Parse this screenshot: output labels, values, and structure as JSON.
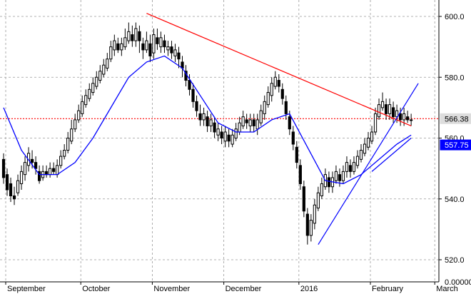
{
  "chart_data": {
    "type": "candlestick",
    "title": "",
    "x_labels": [
      "September",
      "October",
      "November",
      "December",
      "2016",
      "February",
      "March"
    ],
    "x_label_index": [
      1,
      22,
      42,
      62,
      83,
      103,
      121
    ],
    "y_ticks": [
      "600.0",
      "580.0",
      "560.0",
      "540.0",
      "520.0"
    ],
    "y_tick_values": [
      600,
      580,
      560,
      540,
      520
    ],
    "ylim": [
      515,
      604
    ],
    "bottom_right_value": "0.00000",
    "grid": "vertical dashed at month starts, horizontal dashed at y ticks",
    "candles": [
      [
        553,
        547,
        555,
        545
      ],
      [
        548,
        543,
        550,
        541
      ],
      [
        545,
        541,
        547,
        539
      ],
      [
        541,
        540,
        544,
        538
      ],
      [
        542,
        546,
        548,
        541
      ],
      [
        545,
        549,
        551,
        543
      ],
      [
        548,
        552,
        554,
        546
      ],
      [
        551,
        555,
        557,
        549
      ],
      [
        553,
        552,
        556,
        550
      ],
      [
        552,
        550,
        554,
        548
      ],
      [
        549,
        546,
        551,
        545
      ],
      [
        547,
        549,
        551,
        546
      ],
      [
        549,
        548,
        551,
        547
      ],
      [
        548,
        550,
        552,
        547
      ],
      [
        550,
        549,
        552,
        548
      ],
      [
        548,
        551,
        553,
        547
      ],
      [
        551,
        554,
        556,
        550
      ],
      [
        554,
        556,
        558,
        553
      ],
      [
        556,
        560,
        562,
        555
      ],
      [
        559,
        563,
        566,
        558
      ],
      [
        563,
        566,
        568,
        562
      ],
      [
        566,
        569,
        571,
        565
      ],
      [
        568,
        572,
        574,
        567
      ],
      [
        571,
        574,
        576,
        570
      ],
      [
        573,
        576,
        578,
        572
      ],
      [
        575,
        578,
        580,
        574
      ],
      [
        577,
        580,
        582,
        576
      ],
      [
        579,
        582,
        584,
        578
      ],
      [
        581,
        584,
        586,
        580
      ],
      [
        583,
        586,
        588,
        582
      ],
      [
        586,
        590,
        592,
        585
      ],
      [
        589,
        592,
        594,
        587
      ],
      [
        591,
        589,
        593,
        588
      ],
      [
        589,
        591,
        593,
        587
      ],
      [
        590,
        593,
        596,
        589
      ],
      [
        592,
        595,
        598,
        591
      ],
      [
        594,
        592,
        597,
        590
      ],
      [
        592,
        596,
        598,
        590
      ],
      [
        595,
        592,
        597,
        588
      ],
      [
        591,
        589,
        593,
        586
      ],
      [
        589,
        592,
        595,
        588
      ],
      [
        591,
        587,
        594,
        585
      ],
      [
        588,
        594,
        596,
        586
      ],
      [
        593,
        591,
        596,
        589
      ],
      [
        590,
        593,
        595,
        588
      ],
      [
        592,
        590,
        594,
        588
      ],
      [
        589,
        590,
        592,
        587
      ],
      [
        590,
        588,
        592,
        586
      ],
      [
        587,
        589,
        591,
        585
      ],
      [
        588,
        586,
        590,
        583
      ],
      [
        585,
        583,
        587,
        580
      ],
      [
        582,
        579,
        584,
        577
      ],
      [
        579,
        576,
        581,
        574
      ],
      [
        576,
        572,
        578,
        570
      ],
      [
        572,
        569,
        574,
        567
      ],
      [
        568,
        566,
        571,
        564
      ],
      [
        566,
        568,
        570,
        564
      ],
      [
        567,
        564,
        569,
        562
      ],
      [
        564,
        566,
        568,
        562
      ],
      [
        565,
        562,
        567,
        560
      ],
      [
        561,
        563,
        565,
        559
      ],
      [
        562,
        560,
        564,
        558
      ],
      [
        559,
        562,
        564,
        557
      ],
      [
        561,
        559,
        563,
        557
      ],
      [
        558,
        561,
        563,
        557
      ],
      [
        560,
        563,
        565,
        559
      ],
      [
        562,
        565,
        567,
        561
      ],
      [
        564,
        567,
        569,
        563
      ],
      [
        566,
        565,
        568,
        563
      ],
      [
        564,
        566,
        568,
        562
      ],
      [
        566,
        564,
        568,
        562
      ],
      [
        563,
        566,
        568,
        561
      ],
      [
        565,
        569,
        571,
        564
      ],
      [
        568,
        572,
        574,
        566
      ],
      [
        571,
        575,
        577,
        570
      ],
      [
        574,
        578,
        580,
        572
      ],
      [
        577,
        580,
        582,
        576
      ],
      [
        579,
        577,
        581,
        575
      ],
      [
        576,
        573,
        578,
        571
      ],
      [
        572,
        568,
        574,
        566
      ],
      [
        567,
        563,
        569,
        561
      ],
      [
        562,
        558,
        564,
        556
      ],
      [
        557,
        552,
        559,
        550
      ],
      [
        551,
        545,
        553,
        543
      ],
      [
        544,
        536,
        546,
        534
      ],
      [
        535,
        528,
        537,
        525
      ],
      [
        528,
        533,
        535,
        526
      ],
      [
        532,
        538,
        540,
        530
      ],
      [
        537,
        542,
        544,
        536
      ],
      [
        541,
        545,
        547,
        540
      ],
      [
        544,
        548,
        550,
        543
      ],
      [
        547,
        544,
        549,
        542
      ],
      [
        544,
        547,
        549,
        542
      ],
      [
        546,
        549,
        551,
        545
      ],
      [
        548,
        546,
        550,
        544
      ],
      [
        546,
        549,
        551,
        545
      ],
      [
        549,
        552,
        554,
        547
      ],
      [
        551,
        549,
        553,
        547
      ],
      [
        549,
        552,
        554,
        548
      ],
      [
        551,
        554,
        556,
        550
      ],
      [
        553,
        556,
        558,
        552
      ],
      [
        555,
        558,
        560,
        554
      ],
      [
        557,
        560,
        562,
        556
      ],
      [
        559,
        562,
        564,
        558
      ],
      [
        562,
        568,
        570,
        561
      ],
      [
        567,
        571,
        573,
        566
      ],
      [
        570,
        572,
        575,
        569
      ],
      [
        571,
        568,
        573,
        566
      ],
      [
        568,
        571,
        573,
        566
      ],
      [
        570,
        567,
        572,
        565
      ],
      [
        567,
        569,
        571,
        565
      ],
      [
        568,
        566,
        570,
        564
      ],
      [
        566,
        568,
        570,
        564
      ],
      [
        567,
        566,
        569,
        565
      ],
      [
        566,
        566,
        568,
        564
      ]
    ],
    "moving_average": [
      [
        0,
        570
      ],
      [
        5,
        556
      ],
      [
        10,
        548
      ],
      [
        15,
        548
      ],
      [
        20,
        552
      ],
      [
        25,
        560
      ],
      [
        30,
        570
      ],
      [
        35,
        580
      ],
      [
        40,
        585
      ],
      [
        45,
        587
      ],
      [
        50,
        583
      ],
      [
        55,
        574
      ],
      [
        60,
        565
      ],
      [
        65,
        562
      ],
      [
        70,
        562
      ],
      [
        75,
        566
      ],
      [
        80,
        568
      ],
      [
        85,
        557
      ],
      [
        90,
        546
      ],
      [
        95,
        545
      ],
      [
        100,
        548
      ],
      [
        105,
        553
      ],
      [
        110,
        558
      ],
      [
        114,
        561
      ]
    ],
    "current_price": 566.38,
    "current_price_label": "566.38",
    "ma_value": 557.75,
    "ma_label": "557.75",
    "trendlines": [
      {
        "color": "#ff0000",
        "from": [
          40,
          601
        ],
        "to": [
          114,
          564
        ]
      },
      {
        "color": "#0000ff",
        "from": [
          88,
          525
        ],
        "to": [
          116,
          578
        ]
      },
      {
        "color": "#0000ff",
        "from": [
          103,
          549
        ],
        "to": [
          114,
          560
        ]
      }
    ],
    "colors": {
      "candle": "#000000",
      "ma": "#0000ff",
      "resistance": "#ff0000",
      "price_line": "#ff0000",
      "ma_badge": "#0000ff",
      "price_badge_bg": "#dddddd",
      "grid": "#999999"
    }
  }
}
